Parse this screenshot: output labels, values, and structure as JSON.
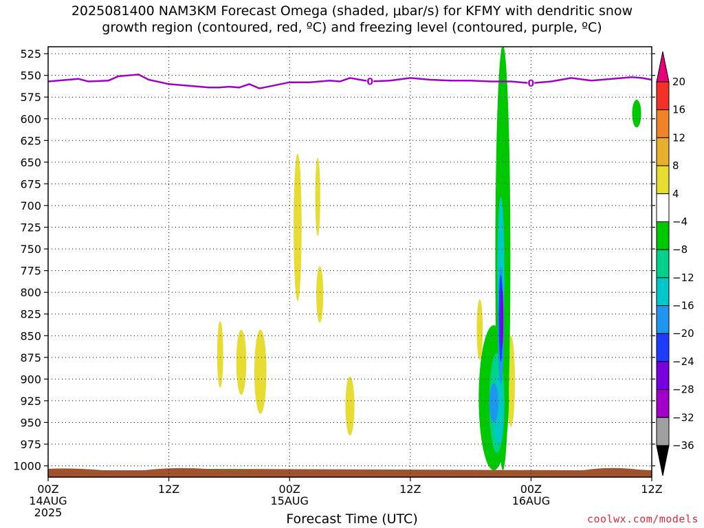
{
  "chart_data": {
    "type": "heatmap",
    "title_line1": "2025081400 NAM3KM Forecast Omega (shaded, μbar/s) for KFMY with dendritic snow",
    "title_line2": "growth region (contoured, red, ºC) and freezing level (contoured, purple, ºC)",
    "xlabel": "Forecast Time (UTC)",
    "x_ticks": [
      {
        "hour": 0,
        "label": "00Z",
        "sub1": "14AUG",
        "sub2": "2025"
      },
      {
        "hour": 12,
        "label": "12Z",
        "sub1": "",
        "sub2": ""
      },
      {
        "hour": 24,
        "label": "00Z",
        "sub1": "15AUG",
        "sub2": ""
      },
      {
        "hour": 36,
        "label": "12Z",
        "sub1": "",
        "sub2": ""
      },
      {
        "hour": 48,
        "label": "00Z",
        "sub1": "16AUG",
        "sub2": ""
      },
      {
        "hour": 60,
        "label": "12Z",
        "sub1": "",
        "sub2": ""
      }
    ],
    "xlim": [
      0,
      60
    ],
    "y_ticks": [
      525,
      550,
      575,
      600,
      625,
      650,
      675,
      700,
      725,
      750,
      775,
      800,
      825,
      850,
      875,
      900,
      925,
      950,
      975,
      1000
    ],
    "ylim": [
      1013,
      517
    ],
    "grid": true,
    "freezing_level": {
      "label": "0",
      "color": "#a000c8",
      "hours": [
        0,
        2,
        3,
        4,
        6,
        7,
        9,
        10,
        12,
        14,
        16,
        17,
        18,
        19,
        20,
        21,
        24,
        26,
        27,
        28,
        29,
        30,
        32,
        34,
        36,
        38,
        40,
        42,
        44,
        46,
        48,
        50,
        52,
        54,
        56,
        58,
        59,
        60
      ],
      "pressure": [
        557,
        555,
        554,
        557,
        556,
        551,
        549,
        555,
        560,
        562,
        564,
        564,
        563,
        564,
        560,
        565,
        558,
        558,
        557,
        556,
        557,
        553,
        557,
        556,
        553,
        555,
        556,
        556,
        557,
        557,
        559,
        557,
        553,
        556,
        554,
        552,
        553,
        555
      ]
    },
    "omega_regions": [
      {
        "level": "4",
        "color": "#e6dc32",
        "hour": 24.8,
        "p_top": 640,
        "p_bottom": 810,
        "width_h": 0.8
      },
      {
        "level": "4",
        "color": "#e6dc32",
        "hour": 26.8,
        "p_top": 645,
        "p_bottom": 735,
        "width_h": 0.5
      },
      {
        "level": "4",
        "color": "#e6dc32",
        "hour": 27.0,
        "p_top": 770,
        "p_bottom": 835,
        "width_h": 0.7
      },
      {
        "level": "4",
        "color": "#e6dc32",
        "hour": 17.1,
        "p_top": 833,
        "p_bottom": 910,
        "width_h": 0.6
      },
      {
        "level": "4",
        "color": "#e6dc32",
        "hour": 19.2,
        "p_top": 843,
        "p_bottom": 918,
        "width_h": 1.0
      },
      {
        "level": "4",
        "color": "#e6dc32",
        "hour": 21.1,
        "p_top": 843,
        "p_bottom": 940,
        "width_h": 1.2
      },
      {
        "level": "4",
        "color": "#e6dc32",
        "hour": 30.0,
        "p_top": 897,
        "p_bottom": 965,
        "width_h": 0.9
      },
      {
        "level": "4",
        "color": "#e6dc32",
        "hour": 42.9,
        "p_top": 808,
        "p_bottom": 878,
        "width_h": 0.6
      },
      {
        "level": "4",
        "color": "#e6dc32",
        "hour": 46.0,
        "p_top": 850,
        "p_bottom": 955,
        "width_h": 0.8
      },
      {
        "level": "-4",
        "color": "#00c800",
        "hour": 45.2,
        "p_top": 515,
        "p_bottom": 1005,
        "width_h": 1.5
      },
      {
        "level": "-4",
        "color": "#00c800",
        "hour": 44.3,
        "p_top": 838,
        "p_bottom": 1005,
        "width_h": 3.0
      },
      {
        "level": "-4",
        "color": "#00c800",
        "hour": 58.5,
        "p_top": 578,
        "p_bottom": 610,
        "width_h": 0.9
      },
      {
        "level": "-8",
        "color": "#00d28c",
        "hour": 44.6,
        "p_top": 870,
        "p_bottom": 985,
        "width_h": 1.5
      },
      {
        "level": "-12",
        "color": "#00c8c8",
        "hour": 44.8,
        "p_top": 895,
        "p_bottom": 975,
        "width_h": 1.0
      },
      {
        "level": "-12",
        "color": "#00c8c8",
        "hour": 45.0,
        "p_top": 690,
        "p_bottom": 870,
        "width_h": 0.7
      },
      {
        "level": "-16",
        "color": "#1e96f0",
        "hour": 45.0,
        "p_top": 770,
        "p_bottom": 905,
        "width_h": 0.6
      },
      {
        "level": "-16",
        "color": "#1e96f0",
        "hour": 44.3,
        "p_top": 905,
        "p_bottom": 950,
        "width_h": 0.9
      },
      {
        "level": "-20",
        "color": "#1e3cff",
        "hour": 45.0,
        "p_top": 780,
        "p_bottom": 880,
        "width_h": 0.4
      },
      {
        "level": "-24",
        "color": "#7800dc",
        "hour": 45.1,
        "p_top": 795,
        "p_bottom": 865,
        "width_h": 0.3
      }
    ],
    "ground": {
      "color": "#a0522d"
    },
    "colorbar": {
      "labels": [
        "20",
        "16",
        "12",
        "8",
        "4",
        "−4",
        "−8",
        "−12",
        "−16",
        "−20",
        "−24",
        "−28",
        "−32",
        "−36"
      ],
      "colors": [
        "#e6007a",
        "#f03228",
        "#f08228",
        "#e6af2d",
        "#e6dc32",
        "#ffffff",
        "#00c800",
        "#00d28c",
        "#00c8c8",
        "#1e96f0",
        "#1e3cff",
        "#7800dc",
        "#a000c8",
        "#a0a0a0",
        "#000000"
      ]
    }
  },
  "credit": "coolwx.com/models"
}
